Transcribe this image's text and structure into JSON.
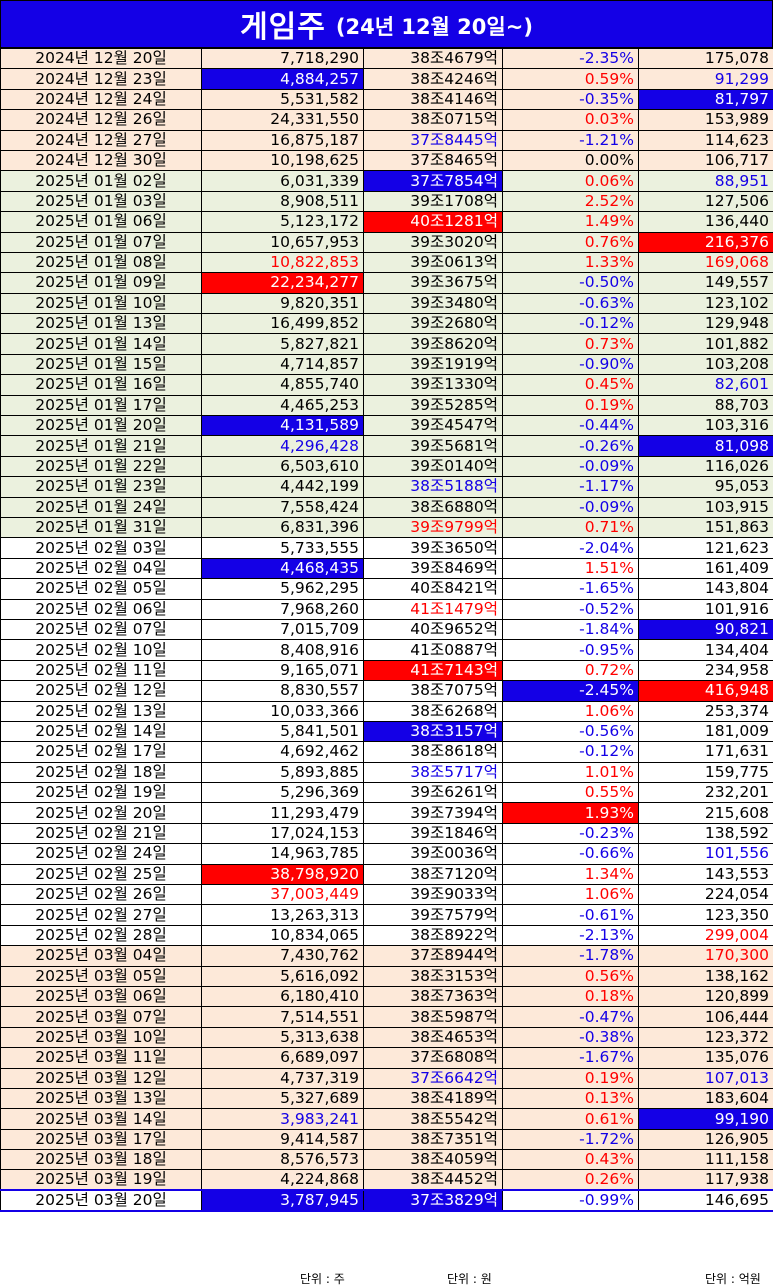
{
  "header": {
    "title": "게임주",
    "subtitle": "(24년 12월 20일~)"
  },
  "rows": [
    {
      "date": "2024년 12월 20일",
      "volume": "7,718,290",
      "cap": "38조4679억",
      "change": "-2.35%",
      "amount": "175,078",
      "band": "peach",
      "vs": "k",
      "cs": "k",
      "chs": "b",
      "as": "k"
    },
    {
      "date": "2024년 12월 23일",
      "volume": "4,884,257",
      "cap": "38조4246억",
      "change": "0.59%",
      "amount": "91,299",
      "band": "peach",
      "vs": "hb",
      "cs": "k",
      "chs": "r",
      "as": "b"
    },
    {
      "date": "2024년 12월 24일",
      "volume": "5,531,582",
      "cap": "38조4146억",
      "change": "-0.35%",
      "amount": "81,797",
      "band": "peach",
      "vs": "k",
      "cs": "k",
      "chs": "b",
      "as": "hb"
    },
    {
      "date": "2024년 12월 26일",
      "volume": "24,331,550",
      "cap": "38조0715억",
      "change": "0.03%",
      "amount": "153,989",
      "band": "peach",
      "vs": "k",
      "cs": "k",
      "chs": "r",
      "as": "k"
    },
    {
      "date": "2024년 12월 27일",
      "volume": "16,875,187",
      "cap": "37조8445억",
      "change": "-1.21%",
      "amount": "114,623",
      "band": "peach",
      "vs": "k",
      "cs": "b",
      "chs": "b",
      "as": "k"
    },
    {
      "date": "2024년 12월 30일",
      "volume": "10,198,625",
      "cap": "37조8465억",
      "change": "0.00%",
      "amount": "106,717",
      "band": "peach",
      "vs": "k",
      "cs": "k",
      "chs": "k",
      "as": "k"
    },
    {
      "date": "2025년 01월 02일",
      "volume": "6,031,339",
      "cap": "37조7854억",
      "change": "0.06%",
      "amount": "88,951",
      "band": "green",
      "vs": "k",
      "cs": "hb",
      "chs": "r",
      "as": "b"
    },
    {
      "date": "2025년 01월 03일",
      "volume": "8,908,511",
      "cap": "39조1708억",
      "change": "2.52%",
      "amount": "127,506",
      "band": "green",
      "vs": "k",
      "cs": "k",
      "chs": "r",
      "as": "k"
    },
    {
      "date": "2025년 01월 06일",
      "volume": "5,123,172",
      "cap": "40조1281억",
      "change": "1.49%",
      "amount": "136,440",
      "band": "green",
      "vs": "k",
      "cs": "hr",
      "chs": "r",
      "as": "k"
    },
    {
      "date": "2025년 01월 07일",
      "volume": "10,657,953",
      "cap": "39조3020억",
      "change": "0.76%",
      "amount": "216,376",
      "band": "green",
      "vs": "k",
      "cs": "k",
      "chs": "r",
      "as": "hr"
    },
    {
      "date": "2025년 01월 08일",
      "volume": "10,822,853",
      "cap": "39조0613억",
      "change": "1.33%",
      "amount": "169,068",
      "band": "green",
      "vs": "r",
      "cs": "k",
      "chs": "r",
      "as": "r"
    },
    {
      "date": "2025년 01월 09일",
      "volume": "22,234,277",
      "cap": "39조3675억",
      "change": "-0.50%",
      "amount": "149,557",
      "band": "green",
      "vs": "hr",
      "cs": "k",
      "chs": "b",
      "as": "k"
    },
    {
      "date": "2025년 01월 10일",
      "volume": "9,820,351",
      "cap": "39조3480억",
      "change": "-0.63%",
      "amount": "123,102",
      "band": "green",
      "vs": "k",
      "cs": "k",
      "chs": "b",
      "as": "k"
    },
    {
      "date": "2025년 01월 13일",
      "volume": "16,499,852",
      "cap": "39조2680억",
      "change": "-0.12%",
      "amount": "129,948",
      "band": "green",
      "vs": "k",
      "cs": "k",
      "chs": "b",
      "as": "k"
    },
    {
      "date": "2025년 01월 14일",
      "volume": "5,827,821",
      "cap": "39조8620억",
      "change": "0.73%",
      "amount": "101,882",
      "band": "green",
      "vs": "k",
      "cs": "k",
      "chs": "r",
      "as": "k"
    },
    {
      "date": "2025년 01월 15일",
      "volume": "4,714,857",
      "cap": "39조1919억",
      "change": "-0.90%",
      "amount": "103,208",
      "band": "green",
      "vs": "k",
      "cs": "k",
      "chs": "b",
      "as": "k"
    },
    {
      "date": "2025년 01월 16일",
      "volume": "4,855,740",
      "cap": "39조1330억",
      "change": "0.45%",
      "amount": "82,601",
      "band": "green",
      "vs": "k",
      "cs": "k",
      "chs": "r",
      "as": "b"
    },
    {
      "date": "2025년 01월 17일",
      "volume": "4,465,253",
      "cap": "39조5285억",
      "change": "0.19%",
      "amount": "88,703",
      "band": "green",
      "vs": "k",
      "cs": "k",
      "chs": "r",
      "as": "k"
    },
    {
      "date": "2025년 01월 20일",
      "volume": "4,131,589",
      "cap": "39조4547억",
      "change": "-0.44%",
      "amount": "103,316",
      "band": "green",
      "vs": "hb",
      "cs": "k",
      "chs": "b",
      "as": "k"
    },
    {
      "date": "2025년 01월 21일",
      "volume": "4,296,428",
      "cap": "39조5681억",
      "change": "-0.26%",
      "amount": "81,098",
      "band": "green",
      "vs": "b",
      "cs": "k",
      "chs": "b",
      "as": "hb"
    },
    {
      "date": "2025년 01월 22일",
      "volume": "6,503,610",
      "cap": "39조0140억",
      "change": "-0.09%",
      "amount": "116,026",
      "band": "green",
      "vs": "k",
      "cs": "k",
      "chs": "b",
      "as": "k"
    },
    {
      "date": "2025년 01월 23일",
      "volume": "4,442,199",
      "cap": "38조5188억",
      "change": "-1.17%",
      "amount": "95,053",
      "band": "green",
      "vs": "k",
      "cs": "b",
      "chs": "b",
      "as": "k"
    },
    {
      "date": "2025년 01월 24일",
      "volume": "7,558,424",
      "cap": "38조6880억",
      "change": "-0.09%",
      "amount": "103,915",
      "band": "green",
      "vs": "k",
      "cs": "k",
      "chs": "b",
      "as": "k"
    },
    {
      "date": "2025년 01월 31일",
      "volume": "6,831,396",
      "cap": "39조9799억",
      "change": "0.71%",
      "amount": "151,863",
      "band": "green",
      "vs": "k",
      "cs": "r",
      "chs": "r",
      "as": "k"
    },
    {
      "date": "2025년 02월 03일",
      "volume": "5,733,555",
      "cap": "39조3650억",
      "change": "-2.04%",
      "amount": "121,623",
      "band": "white",
      "vs": "k",
      "cs": "k",
      "chs": "b",
      "as": "k"
    },
    {
      "date": "2025년 02월 04일",
      "volume": "4,468,435",
      "cap": "39조8469억",
      "change": "1.51%",
      "amount": "161,409",
      "band": "white",
      "vs": "hb",
      "cs": "k",
      "chs": "r",
      "as": "k"
    },
    {
      "date": "2025년 02월 05일",
      "volume": "5,962,295",
      "cap": "40조8421억",
      "change": "-1.65%",
      "amount": "143,804",
      "band": "white",
      "vs": "k",
      "cs": "k",
      "chs": "b",
      "as": "k"
    },
    {
      "date": "2025년 02월 06일",
      "volume": "7,968,260",
      "cap": "41조1479억",
      "change": "-0.52%",
      "amount": "101,916",
      "band": "white",
      "vs": "k",
      "cs": "r",
      "chs": "b",
      "as": "k"
    },
    {
      "date": "2025년 02월 07일",
      "volume": "7,015,709",
      "cap": "40조9652억",
      "change": "-1.84%",
      "amount": "90,821",
      "band": "white",
      "vs": "k",
      "cs": "k",
      "chs": "b",
      "as": "hb"
    },
    {
      "date": "2025년 02월 10일",
      "volume": "8,408,916",
      "cap": "41조0887억",
      "change": "-0.95%",
      "amount": "134,404",
      "band": "white",
      "vs": "k",
      "cs": "k",
      "chs": "b",
      "as": "k"
    },
    {
      "date": "2025년 02월 11일",
      "volume": "9,165,071",
      "cap": "41조7143억",
      "change": "0.72%",
      "amount": "234,958",
      "band": "white",
      "vs": "k",
      "cs": "hr",
      "chs": "r",
      "as": "k"
    },
    {
      "date": "2025년 02월 12일",
      "volume": "8,830,557",
      "cap": "38조7075억",
      "change": "-2.45%",
      "amount": "416,948",
      "band": "white",
      "vs": "k",
      "cs": "k",
      "chs": "hb",
      "as": "hr"
    },
    {
      "date": "2025년 02월 13일",
      "volume": "10,033,366",
      "cap": "38조6268억",
      "change": "1.06%",
      "amount": "253,374",
      "band": "white",
      "vs": "k",
      "cs": "k",
      "chs": "r",
      "as": "k"
    },
    {
      "date": "2025년 02월 14일",
      "volume": "5,841,501",
      "cap": "38조3157억",
      "change": "-0.56%",
      "amount": "181,009",
      "band": "white",
      "vs": "k",
      "cs": "hb",
      "chs": "b",
      "as": "k"
    },
    {
      "date": "2025년 02월 17일",
      "volume": "4,692,462",
      "cap": "38조8618억",
      "change": "-0.12%",
      "amount": "171,631",
      "band": "white",
      "vs": "k",
      "cs": "k",
      "chs": "b",
      "as": "k"
    },
    {
      "date": "2025년 02월 18일",
      "volume": "5,893,885",
      "cap": "38조5717억",
      "change": "1.01%",
      "amount": "159,775",
      "band": "white",
      "vs": "k",
      "cs": "b",
      "chs": "r",
      "as": "k"
    },
    {
      "date": "2025년 02월 19일",
      "volume": "5,296,369",
      "cap": "39조6261억",
      "change": "0.55%",
      "amount": "232,201",
      "band": "white",
      "vs": "k",
      "cs": "k",
      "chs": "r",
      "as": "k"
    },
    {
      "date": "2025년 02월 20일",
      "volume": "11,293,479",
      "cap": "39조7394억",
      "change": "1.93%",
      "amount": "215,608",
      "band": "white",
      "vs": "k",
      "cs": "k",
      "chs": "hr",
      "as": "k"
    },
    {
      "date": "2025년 02월 21일",
      "volume": "17,024,153",
      "cap": "39조1846억",
      "change": "-0.23%",
      "amount": "138,592",
      "band": "white",
      "vs": "k",
      "cs": "k",
      "chs": "b",
      "as": "k"
    },
    {
      "date": "2025년 02월 24일",
      "volume": "14,963,785",
      "cap": "39조0036억",
      "change": "-0.66%",
      "amount": "101,556",
      "band": "white",
      "vs": "k",
      "cs": "k",
      "chs": "b",
      "as": "b"
    },
    {
      "date": "2025년 02월 25일",
      "volume": "38,798,920",
      "cap": "38조7120억",
      "change": "1.34%",
      "amount": "143,553",
      "band": "white",
      "vs": "hr",
      "cs": "k",
      "chs": "r",
      "as": "k"
    },
    {
      "date": "2025년 02월 26일",
      "volume": "37,003,449",
      "cap": "39조9033억",
      "change": "1.06%",
      "amount": "224,054",
      "band": "white",
      "vs": "r",
      "cs": "k",
      "chs": "r",
      "as": "k"
    },
    {
      "date": "2025년 02월 27일",
      "volume": "13,263,313",
      "cap": "39조7579억",
      "change": "-0.61%",
      "amount": "123,350",
      "band": "white",
      "vs": "k",
      "cs": "k",
      "chs": "b",
      "as": "k"
    },
    {
      "date": "2025년 02월 28일",
      "volume": "10,834,065",
      "cap": "38조8922억",
      "change": "-2.13%",
      "amount": "299,004",
      "band": "white",
      "vs": "k",
      "cs": "k",
      "chs": "b",
      "as": "r"
    },
    {
      "date": "2025년 03월 04일",
      "volume": "7,430,762",
      "cap": "37조8944억",
      "change": "-1.78%",
      "amount": "170,300",
      "band": "peach",
      "vs": "k",
      "cs": "k",
      "chs": "b",
      "as": "r"
    },
    {
      "date": "2025년 03월 05일",
      "volume": "5,616,092",
      "cap": "38조3153억",
      "change": "0.56%",
      "amount": "138,162",
      "band": "peach",
      "vs": "k",
      "cs": "k",
      "chs": "r",
      "as": "k"
    },
    {
      "date": "2025년 03월 06일",
      "volume": "6,180,410",
      "cap": "38조7363억",
      "change": "0.18%",
      "amount": "120,899",
      "band": "peach",
      "vs": "k",
      "cs": "k",
      "chs": "r",
      "as": "k"
    },
    {
      "date": "2025년 03월 07일",
      "volume": "7,514,551",
      "cap": "38조5987억",
      "change": "-0.47%",
      "amount": "106,444",
      "band": "peach",
      "vs": "k",
      "cs": "k",
      "chs": "b",
      "as": "k"
    },
    {
      "date": "2025년 03월 10일",
      "volume": "5,313,638",
      "cap": "38조4653억",
      "change": "-0.38%",
      "amount": "123,372",
      "band": "peach",
      "vs": "k",
      "cs": "k",
      "chs": "b",
      "as": "k"
    },
    {
      "date": "2025년 03월 11일",
      "volume": "6,689,097",
      "cap": "37조6808억",
      "change": "-1.67%",
      "amount": "135,076",
      "band": "peach",
      "vs": "k",
      "cs": "k",
      "chs": "b",
      "as": "k"
    },
    {
      "date": "2025년 03월 12일",
      "volume": "4,737,319",
      "cap": "37조6642억",
      "change": "0.19%",
      "amount": "107,013",
      "band": "peach",
      "vs": "k",
      "cs": "b",
      "chs": "r",
      "as": "b"
    },
    {
      "date": "2025년 03월 13일",
      "volume": "5,327,689",
      "cap": "38조4189억",
      "change": "0.13%",
      "amount": "183,604",
      "band": "peach",
      "vs": "k",
      "cs": "k",
      "chs": "r",
      "as": "k"
    },
    {
      "date": "2025년 03월 14일",
      "volume": "3,983,241",
      "cap": "38조5542억",
      "change": "0.61%",
      "amount": "99,190",
      "band": "peach",
      "vs": "b",
      "cs": "k",
      "chs": "r",
      "as": "hb"
    },
    {
      "date": "2025년 03월 17일",
      "volume": "9,414,587",
      "cap": "38조7351억",
      "change": "-1.72%",
      "amount": "126,905",
      "band": "peach",
      "vs": "k",
      "cs": "k",
      "chs": "b",
      "as": "k"
    },
    {
      "date": "2025년 03월 18일",
      "volume": "8,576,573",
      "cap": "38조4059억",
      "change": "0.43%",
      "amount": "111,158",
      "band": "peach",
      "vs": "k",
      "cs": "k",
      "chs": "r",
      "as": "k"
    },
    {
      "date": "2025년 03월 19일",
      "volume": "4,224,868",
      "cap": "38조4452억",
      "change": "0.26%",
      "amount": "117,938",
      "band": "peach",
      "vs": "k",
      "cs": "k",
      "chs": "r",
      "as": "k"
    },
    {
      "date": "2025년 03월 20일",
      "volume": "3,787,945",
      "cap": "37조3829억",
      "change": "-0.99%",
      "amount": "146,695",
      "band": "last",
      "vs": "hb",
      "cs": "hb",
      "chs": "b",
      "as": "k"
    }
  ],
  "units": {
    "volume": "단위 : 주",
    "cap": "단위 : 원",
    "amount": "단위 : 억원"
  },
  "colors": {
    "blue": "#1400e6",
    "red": "#ff0000",
    "peach": "#fde9d9",
    "green": "#ebf1de"
  }
}
